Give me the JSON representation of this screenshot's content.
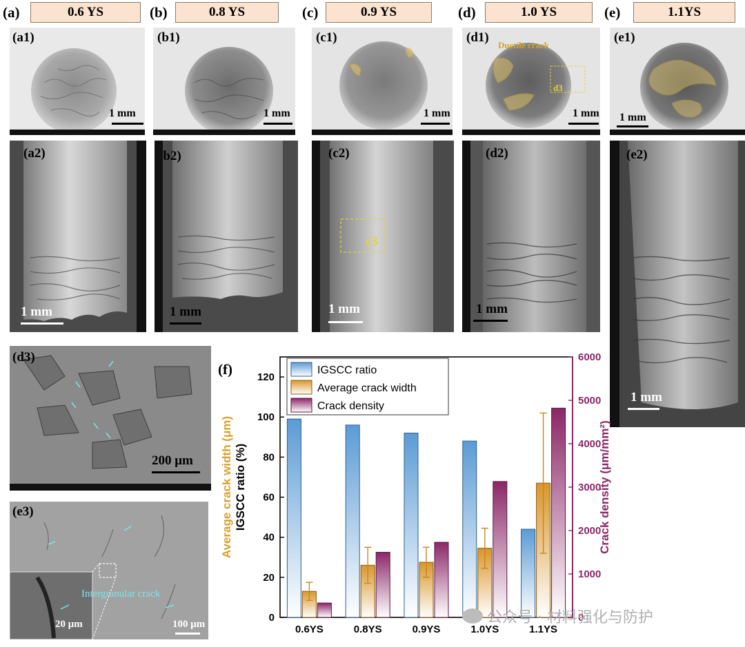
{
  "headers": [
    {
      "letter": "(a)",
      "title": "0.6 YS"
    },
    {
      "letter": "(b)",
      "title": "0.8 YS"
    },
    {
      "letter": "(c)",
      "title": "0.9 YS"
    },
    {
      "letter": "(d)",
      "title": "1.0 YS"
    },
    {
      "letter": "(e)",
      "title": "1.1YS"
    }
  ],
  "top_panels": [
    {
      "label": "(a1)",
      "scale": "1 mm"
    },
    {
      "label": "(b1)",
      "scale": "1 mm"
    },
    {
      "label": "(c1)",
      "scale": "1 mm"
    },
    {
      "label": "(d1)",
      "scale": "1 mm",
      "annotation": "Ductile crack",
      "box_label": "d3"
    },
    {
      "label": "(e1)",
      "scale": "1 mm"
    }
  ],
  "side_panels": [
    {
      "label": "(a2)",
      "scale": "1 mm"
    },
    {
      "label": "(b2)",
      "scale": "1 mm"
    },
    {
      "label": "(c2)",
      "scale": "1 mm",
      "box_label": "c3"
    },
    {
      "label": "(d2)",
      "scale": "1 mm"
    },
    {
      "label": "(e2)",
      "scale": "1 mm"
    }
  ],
  "d3": {
    "label": "(d3)",
    "scale": "200 μm"
  },
  "e3": {
    "label": "(e3)",
    "scale": "100 μm",
    "inset_scale": "20 μm",
    "annotation": "Intergranular crack"
  },
  "watermark": "公众号 · 材料强化与防护",
  "chart_data": {
    "panel_label": "(f)",
    "type": "bar",
    "categories": [
      "0.6YS",
      "0.8YS",
      "0.9YS",
      "1.0YS",
      "1.1YS"
    ],
    "series": [
      {
        "name": "IGSCC ratio",
        "axis": "left",
        "values": [
          99,
          96,
          92,
          88,
          44
        ],
        "color": "#5b9bd5"
      },
      {
        "name": "Average crack width",
        "axis": "left",
        "values": [
          13,
          26,
          27.5,
          34.5,
          67
        ],
        "errors": [
          4.5,
          9,
          7.5,
          10,
          35
        ],
        "color": "#d9962b"
      },
      {
        "name": "Crack density",
        "axis": "right",
        "values": [
          330,
          1500,
          1730,
          3130,
          4820
        ],
        "color": "#8b2767"
      }
    ],
    "ylabel_left_outer": "Average crack width (μm)",
    "ylabel_left": "IGSCC ratio (%)",
    "ylabel_right": "Crack density (μm/mm²)",
    "ylim_left": [
      0,
      130
    ],
    "yticks_left": [
      0,
      20,
      40,
      60,
      80,
      100,
      120
    ],
    "ylim_right": [
      0,
      6000
    ],
    "yticks_right": [
      0,
      1000,
      2000,
      3000,
      4000,
      5000,
      6000
    ],
    "legend_position": "top-left",
    "grid": false
  }
}
